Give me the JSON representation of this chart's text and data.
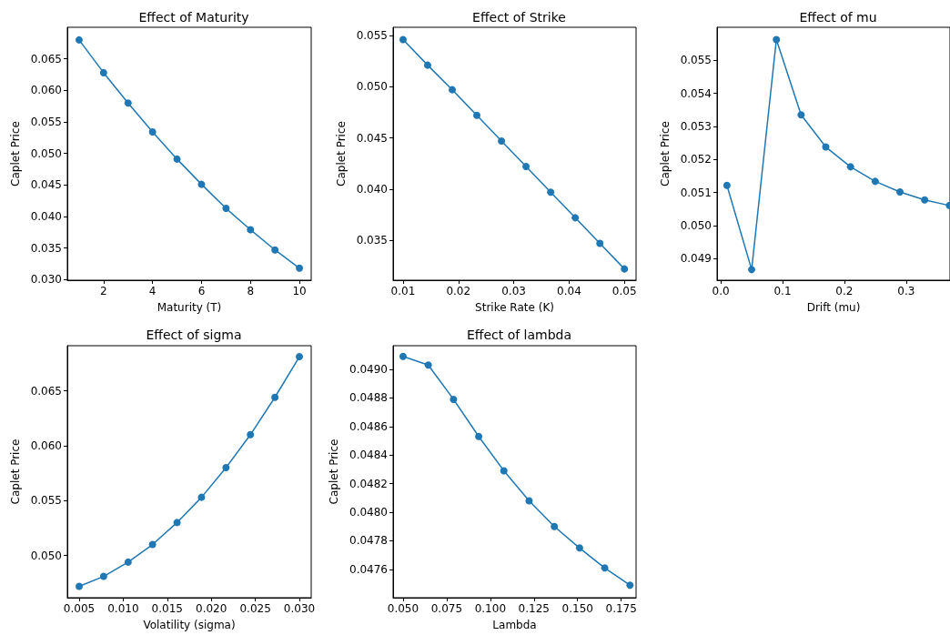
{
  "chart_data": [
    {
      "type": "line",
      "title": "Effect of Maturity",
      "xlabel": "Maturity (T)",
      "ylabel": "Caplet Price",
      "marker": "circle",
      "grid": false,
      "x": [
        1,
        2,
        3,
        4,
        5,
        6,
        7,
        8,
        9,
        10
      ],
      "series": [
        {
          "color": "#1f77b4",
          "values": [
            0.068,
            0.0628,
            0.058,
            0.0534,
            0.0491,
            0.0451,
            0.0413,
            0.0379,
            0.0347,
            0.0318
          ]
        }
      ],
      "xlim": [
        0.52,
        10.48
      ],
      "xticks": [
        2,
        4,
        6,
        8,
        10
      ],
      "ylim": [
        0.0299,
        0.07
      ],
      "yticks": [
        {
          "value": 0.03,
          "label": "0.030"
        },
        0.035,
        {
          "value": 0.04,
          "label": "0.040"
        },
        0.045,
        {
          "value": 0.05,
          "label": "0.050"
        },
        0.055,
        {
          "value": 0.06,
          "label": "0.060"
        },
        0.065
      ]
    },
    {
      "type": "line",
      "title": "Effect of Strike",
      "xlabel": "Strike Rate (K)",
      "ylabel": "Caplet Price",
      "marker": "circle",
      "grid": false,
      "x": [
        0.01,
        0.01444,
        0.01889,
        0.02333,
        0.02778,
        0.03222,
        0.03667,
        0.04111,
        0.04556,
        0.05
      ],
      "series": [
        {
          "color": "#1f77b4",
          "values": [
            0.0546,
            0.0521,
            0.0497,
            0.0472,
            0.0447,
            0.0422,
            0.0397,
            0.0372,
            0.0347,
            0.0322
          ]
        }
      ],
      "xlim": [
        0.0082,
        0.0521
      ],
      "xticks": [
        0.01,
        0.02,
        0.03,
        0.04,
        0.05
      ],
      "ylim": [
        0.0311,
        0.0558
      ],
      "yticks": [
        0.035,
        {
          "value": 0.04,
          "label": "0.040"
        },
        0.045,
        {
          "value": 0.05,
          "label": "0.050"
        },
        0.055
      ]
    },
    {
      "type": "line",
      "title": "Effect of mu",
      "xlabel": "Drift (mu)",
      "ylabel": "Caplet Price",
      "marker": "circle",
      "grid": false,
      "x": [
        0.01,
        0.05,
        0.09,
        0.13,
        0.17,
        0.21,
        0.25,
        0.29,
        0.33,
        0.37
      ],
      "series": [
        {
          "color": "#1f77b4",
          "values": [
            0.05122,
            0.04867,
            0.05563,
            0.05335,
            0.05238,
            0.05178,
            0.05134,
            0.05102,
            0.05078,
            0.05061
          ]
        }
      ],
      "xlim": [
        -0.006,
        0.371
      ],
      "xticks": [
        {
          "value": 0,
          "label": "0.0"
        },
        0.1,
        0.2,
        0.3
      ],
      "ylim": [
        0.04835,
        0.056
      ],
      "yticks": [
        0.049,
        {
          "value": 0.05,
          "label": "0.050"
        },
        0.051,
        0.052,
        0.053,
        0.054,
        0.055
      ]
    },
    {
      "type": "line",
      "title": "Effect of sigma",
      "xlabel": "Volatility (sigma)",
      "ylabel": "Caplet Price",
      "marker": "circle",
      "grid": false,
      "x": [
        0.005,
        0.00778,
        0.01056,
        0.01333,
        0.01611,
        0.01889,
        0.02167,
        0.02444,
        0.02722,
        0.03
      ],
      "series": [
        {
          "color": "#1f77b4",
          "values": [
            0.0472,
            0.0481,
            0.0494,
            0.051,
            0.053,
            0.0553,
            0.058,
            0.061,
            0.0644,
            0.0681
          ]
        }
      ],
      "xlim": [
        0.00366,
        0.03134
      ],
      "xticks": [
        0.005,
        {
          "value": 0.01,
          "label": "0.010"
        },
        0.015,
        {
          "value": 0.02,
          "label": "0.020"
        },
        0.025,
        {
          "value": 0.03,
          "label": "0.030"
        }
      ],
      "ylim": [
        0.04616,
        0.0691
      ],
      "yticks": [
        {
          "value": 0.05,
          "label": "0.050"
        },
        0.055,
        {
          "value": 0.06,
          "label": "0.060"
        },
        0.065
      ]
    },
    {
      "type": "line",
      "title": "Effect of lambda",
      "xlabel": "Lambda",
      "ylabel": "Caplet Price",
      "marker": "circle",
      "grid": false,
      "x": [
        0.05,
        0.06444,
        0.07889,
        0.09333,
        0.10778,
        0.12222,
        0.13667,
        0.15111,
        0.16556,
        0.18
      ],
      "series": [
        {
          "color": "#1f77b4",
          "values": [
            0.04909,
            0.04903,
            0.04879,
            0.04853,
            0.04829,
            0.04808,
            0.0479,
            0.04775,
            0.04761,
            0.04749
          ]
        }
      ],
      "xlim": [
        0.0443,
        0.1835
      ],
      "xticks": [
        {
          "value": 0.05,
          "label": "0.050"
        },
        0.075,
        {
          "value": 0.1,
          "label": "0.100"
        },
        0.125,
        {
          "value": 0.15,
          "label": "0.150"
        },
        0.175
      ],
      "ylim": [
        0.047402,
        0.049165
      ],
      "yticks": [
        0.0476,
        0.0478,
        {
          "value": 0.048,
          "label": "0.0480"
        },
        0.0482,
        0.0484,
        0.0486,
        0.0488,
        {
          "value": 0.049,
          "label": "0.0490"
        }
      ]
    }
  ]
}
